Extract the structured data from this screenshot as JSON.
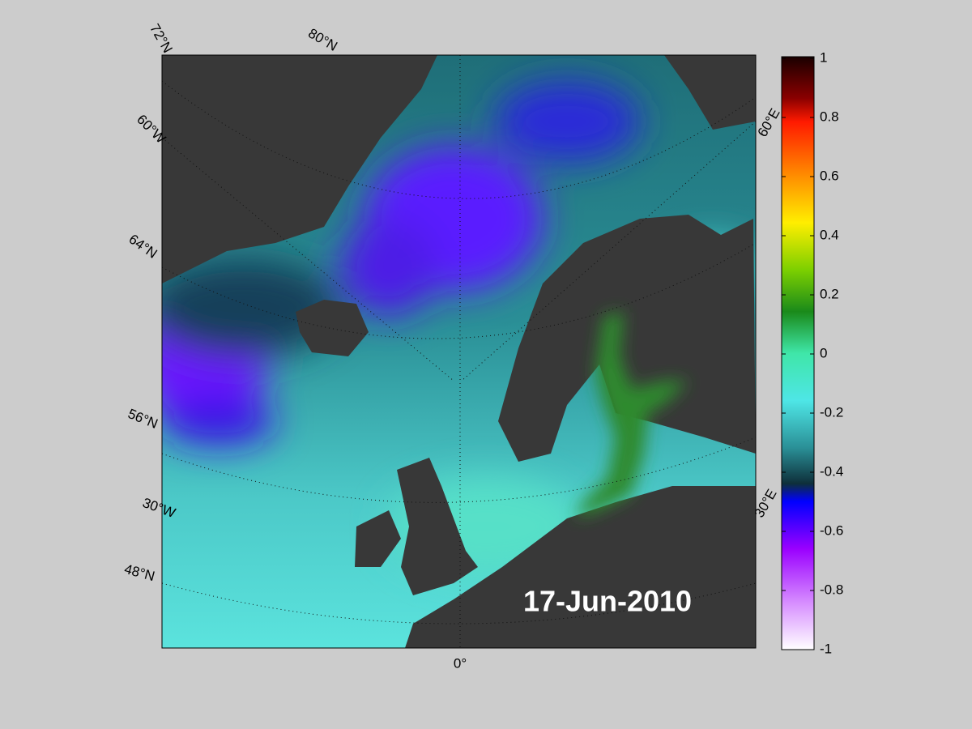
{
  "map": {
    "date": "17-Jun-2010",
    "graticule_labels": [
      "72°N",
      "80°N",
      "60°W",
      "64°N",
      "56°N",
      "30°W",
      "48°N",
      "0°",
      "60°E",
      "30°E"
    ],
    "colorbar": {
      "lim": [
        -1,
        1
      ],
      "ticks": [
        1,
        0.8,
        0.6,
        0.4,
        0.2,
        0,
        -0.2,
        -0.4,
        -0.6,
        -0.8,
        -1
      ]
    }
  }
}
